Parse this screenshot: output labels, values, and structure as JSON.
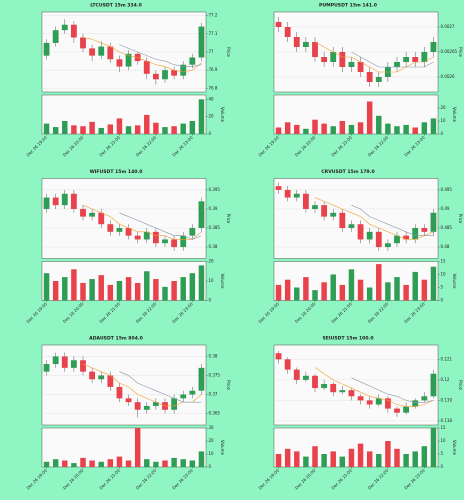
{
  "colors": {
    "up": "#2f9e55",
    "down": "#e8424c",
    "ma1": "#f0a030",
    "ma2": "#8a95a8"
  },
  "chart_data": [
    {
      "type": "candlestick",
      "title": "LTCUSDT 15m 334.0",
      "y_label": "Price",
      "volume_label": "Volume",
      "categories": [
        "Dec 26 19:00",
        null,
        null,
        null,
        "Dec 26 20:00",
        null,
        null,
        null,
        "Dec 26 21:00",
        null,
        null,
        null,
        "Dec 26 22:00",
        null,
        null,
        null,
        "Dec 26 23:00",
        null
      ],
      "ohlc": [
        [
          76.98,
          77.07,
          76.96,
          77.05
        ],
        [
          77.05,
          77.14,
          77.03,
          77.12
        ],
        [
          77.12,
          77.18,
          77.1,
          77.15
        ],
        [
          77.15,
          77.17,
          77.05,
          77.08
        ],
        [
          77.08,
          77.1,
          77.0,
          77.02
        ],
        [
          77.02,
          77.04,
          76.95,
          76.98
        ],
        [
          76.98,
          77.06,
          76.96,
          77.03
        ],
        [
          77.03,
          77.05,
          76.94,
          76.96
        ],
        [
          76.96,
          76.98,
          76.89,
          76.92
        ],
        [
          76.92,
          77.01,
          76.9,
          76.99
        ],
        [
          76.99,
          77.0,
          76.93,
          76.95
        ],
        [
          76.95,
          76.97,
          76.85,
          76.88
        ],
        [
          76.88,
          76.9,
          76.82,
          76.85
        ],
        [
          76.85,
          76.92,
          76.83,
          76.9
        ],
        [
          76.9,
          76.92,
          76.85,
          76.87
        ],
        [
          76.87,
          76.95,
          76.85,
          76.93
        ],
        [
          76.93,
          76.99,
          76.91,
          76.97
        ],
        [
          76.97,
          77.16,
          76.95,
          77.14
        ]
      ],
      "ma1": [
        null,
        null,
        null,
        null,
        77.08,
        77.07,
        77.05,
        77.03,
        77.0,
        76.98,
        76.97,
        76.95,
        76.93,
        76.92,
        76.9,
        76.89,
        76.9,
        76.94
      ],
      "ma2": [
        null,
        null,
        null,
        null,
        null,
        null,
        null,
        null,
        77.04,
        77.02,
        77.0,
        76.98,
        76.96,
        76.95,
        76.93,
        76.92,
        76.92,
        76.93
      ],
      "volume": [
        12,
        8,
        15,
        10,
        9,
        14,
        7,
        11,
        18,
        9,
        10,
        22,
        13,
        8,
        9,
        12,
        15,
        40
      ],
      "ylim": [
        76.78,
        77.22
      ],
      "yticks": [
        76.8,
        76.9,
        77,
        77.1,
        77.2
      ],
      "vlim": [
        0,
        45
      ],
      "vticks": [
        0,
        20,
        40
      ]
    },
    {
      "type": "candlestick",
      "title": "PUMPUSDT 15m 141.0",
      "y_label": "Price",
      "volume_label": "Volume",
      "categories": [
        "Dec 26 19:00",
        null,
        null,
        null,
        "Dec 26 20:00",
        null,
        null,
        null,
        "Dec 26 21:00",
        null,
        null,
        null,
        "Dec 26 22:00",
        null,
        null,
        null,
        "Dec 26 23:00",
        null
      ],
      "ohlc": [
        [
          0.00271,
          0.00272,
          0.00269,
          0.0027
        ],
        [
          0.0027,
          0.00271,
          0.00267,
          0.00268
        ],
        [
          0.00268,
          0.00269,
          0.00265,
          0.00266
        ],
        [
          0.00266,
          0.00268,
          0.00265,
          0.00267
        ],
        [
          0.00267,
          0.00268,
          0.00263,
          0.00264
        ],
        [
          0.00264,
          0.00265,
          0.00262,
          0.00263
        ],
        [
          0.00263,
          0.00266,
          0.00262,
          0.00265
        ],
        [
          0.00265,
          0.00266,
          0.00261,
          0.00262
        ],
        [
          0.00262,
          0.00264,
          0.00261,
          0.00263
        ],
        [
          0.00263,
          0.00264,
          0.0026,
          0.00261
        ],
        [
          0.00261,
          0.00262,
          0.00258,
          0.00259
        ],
        [
          0.00259,
          0.00261,
          0.00258,
          0.0026
        ],
        [
          0.0026,
          0.00263,
          0.00259,
          0.00262
        ],
        [
          0.00262,
          0.00264,
          0.00261,
          0.00263
        ],
        [
          0.00263,
          0.00265,
          0.00262,
          0.00264
        ],
        [
          0.00264,
          0.00265,
          0.00262,
          0.00263
        ],
        [
          0.00263,
          0.00266,
          0.00262,
          0.00265
        ],
        [
          0.00265,
          0.00268,
          0.00264,
          0.00267
        ]
      ],
      "ma1": [
        null,
        null,
        null,
        null,
        0.00267,
        0.00266,
        0.00265,
        0.00264,
        0.00264,
        0.00263,
        0.00262,
        0.00261,
        0.00261,
        0.00261,
        0.00262,
        0.00263,
        0.00263,
        0.00264
      ],
      "ma2": [
        null,
        null,
        null,
        null,
        null,
        null,
        null,
        null,
        0.00265,
        0.00264,
        0.00263,
        0.00262,
        0.00262,
        0.00262,
        0.00262,
        0.00262,
        0.00262,
        0.00263
      ],
      "volume": [
        5,
        9,
        7,
        4,
        11,
        8,
        6,
        10,
        7,
        9,
        25,
        14,
        8,
        6,
        7,
        5,
        9,
        12
      ],
      "ylim": [
        0.00257,
        0.00273
      ],
      "yticks": [
        0.0026,
        0.00265,
        0.0027
      ],
      "vlim": [
        0,
        30
      ],
      "vticks": [
        0,
        10,
        20
      ]
    },
    {
      "type": "candlestick",
      "title": "WIFUSDT 15m 140.0",
      "y_label": "Price",
      "volume_label": "Volume",
      "categories": [
        "Dec 26 19:00",
        null,
        null,
        null,
        "Dec 26 20:00",
        null,
        null,
        null,
        "Dec 26 21:00",
        null,
        null,
        null,
        "Dec 26 22:00",
        null,
        null,
        null,
        "Dec 26 23:00",
        null
      ],
      "ohlc": [
        [
          0.39,
          0.394,
          0.389,
          0.393
        ],
        [
          0.393,
          0.394,
          0.39,
          0.391
        ],
        [
          0.391,
          0.395,
          0.39,
          0.394
        ],
        [
          0.394,
          0.395,
          0.389,
          0.39
        ],
        [
          0.39,
          0.391,
          0.387,
          0.388
        ],
        [
          0.388,
          0.39,
          0.387,
          0.389
        ],
        [
          0.389,
          0.39,
          0.385,
          0.386
        ],
        [
          0.386,
          0.387,
          0.383,
          0.384
        ],
        [
          0.384,
          0.386,
          0.383,
          0.385
        ],
        [
          0.385,
          0.386,
          0.382,
          0.383
        ],
        [
          0.383,
          0.384,
          0.381,
          0.382
        ],
        [
          0.382,
          0.385,
          0.381,
          0.384
        ],
        [
          0.384,
          0.385,
          0.38,
          0.381
        ],
        [
          0.381,
          0.383,
          0.38,
          0.382
        ],
        [
          0.382,
          0.383,
          0.379,
          0.38
        ],
        [
          0.38,
          0.384,
          0.379,
          0.383
        ],
        [
          0.383,
          0.386,
          0.382,
          0.385
        ],
        [
          0.385,
          0.393,
          0.384,
          0.392
        ]
      ],
      "ma1": [
        null,
        null,
        null,
        null,
        0.391,
        0.39,
        0.389,
        0.388,
        0.386,
        0.385,
        0.384,
        0.384,
        0.383,
        0.383,
        0.382,
        0.382,
        0.382,
        0.384
      ],
      "ma2": [
        null,
        null,
        null,
        null,
        null,
        null,
        null,
        null,
        0.389,
        0.388,
        0.387,
        0.386,
        0.385,
        0.384,
        0.383,
        0.383,
        0.382,
        0.383
      ],
      "volume": [
        14,
        10,
        12,
        16,
        9,
        11,
        13,
        8,
        10,
        12,
        9,
        15,
        11,
        7,
        10,
        12,
        14,
        18
      ],
      "ylim": [
        0.377,
        0.398
      ],
      "yticks": [
        0.38,
        0.385,
        0.39,
        0.395
      ],
      "vlim": [
        0,
        20
      ],
      "vticks": [
        0,
        10,
        20
      ]
    },
    {
      "type": "candlestick",
      "title": "CRVUSDT 15m 179.0",
      "y_label": "Price",
      "volume_label": "Volume",
      "categories": [
        "Dec 26 19:00",
        null,
        null,
        null,
        "Dec 26 20:00",
        null,
        null,
        null,
        "Dec 26 21:00",
        null,
        null,
        null,
        "Dec 26 22:00",
        null,
        null,
        null,
        "Dec 26 23:00",
        null
      ],
      "ohlc": [
        [
          0.496,
          0.497,
          0.494,
          0.495
        ],
        [
          0.495,
          0.496,
          0.492,
          0.493
        ],
        [
          0.493,
          0.495,
          0.492,
          0.494
        ],
        [
          0.494,
          0.495,
          0.489,
          0.49
        ],
        [
          0.49,
          0.492,
          0.489,
          0.491
        ],
        [
          0.491,
          0.492,
          0.487,
          0.488
        ],
        [
          0.488,
          0.49,
          0.487,
          0.489
        ],
        [
          0.489,
          0.49,
          0.484,
          0.485
        ],
        [
          0.485,
          0.487,
          0.484,
          0.486
        ],
        [
          0.486,
          0.487,
          0.481,
          0.482
        ],
        [
          0.482,
          0.485,
          0.481,
          0.484
        ],
        [
          0.484,
          0.485,
          0.479,
          0.48
        ],
        [
          0.48,
          0.482,
          0.479,
          0.481
        ],
        [
          0.481,
          0.484,
          0.48,
          0.483
        ],
        [
          0.483,
          0.484,
          0.481,
          0.482
        ],
        [
          0.482,
          0.486,
          0.481,
          0.485
        ],
        [
          0.485,
          0.486,
          0.483,
          0.484
        ],
        [
          0.484,
          0.49,
          0.483,
          0.489
        ]
      ],
      "ma1": [
        null,
        null,
        null,
        null,
        0.493,
        0.492,
        0.491,
        0.49,
        0.489,
        0.488,
        0.486,
        0.485,
        0.484,
        0.483,
        0.482,
        0.482,
        0.483,
        0.484
      ],
      "ma2": [
        null,
        null,
        null,
        null,
        null,
        null,
        null,
        null,
        0.491,
        0.49,
        0.488,
        0.487,
        0.486,
        0.485,
        0.484,
        0.483,
        0.483,
        0.483
      ],
      "volume": [
        6,
        8,
        5,
        9,
        4,
        7,
        10,
        6,
        12,
        8,
        5,
        14,
        7,
        9,
        6,
        11,
        8,
        13
      ],
      "ylim": [
        0.477,
        0.498
      ],
      "yticks": [
        0.48,
        0.485,
        0.49,
        0.495
      ],
      "vlim": [
        0,
        15
      ],
      "vticks": [
        0,
        5,
        10,
        15
      ]
    },
    {
      "type": "candlestick",
      "title": "ADAUSDT 15m 804.0",
      "y_label": "Price",
      "volume_label": "Volume",
      "categories": [
        "Dec 26 19:00",
        null,
        null,
        null,
        "Dec 26 20:00",
        null,
        null,
        null,
        "Dec 26 21:00",
        null,
        null,
        null,
        "Dec 26 22:00",
        null,
        null,
        null,
        "Dec 26 23:00",
        null
      ],
      "ohlc": [
        [
          0.376,
          0.379,
          0.375,
          0.378
        ],
        [
          0.378,
          0.381,
          0.377,
          0.38
        ],
        [
          0.38,
          0.381,
          0.376,
          0.377
        ],
        [
          0.377,
          0.38,
          0.376,
          0.379
        ],
        [
          0.379,
          0.38,
          0.375,
          0.376
        ],
        [
          0.376,
          0.377,
          0.373,
          0.374
        ],
        [
          0.374,
          0.376,
          0.373,
          0.375
        ],
        [
          0.375,
          0.376,
          0.371,
          0.372
        ],
        [
          0.372,
          0.373,
          0.368,
          0.369
        ],
        [
          0.369,
          0.37,
          0.367,
          0.368
        ],
        [
          0.368,
          0.369,
          0.364,
          0.366
        ],
        [
          0.366,
          0.368,
          0.365,
          0.367
        ],
        [
          0.367,
          0.369,
          0.366,
          0.368
        ],
        [
          0.368,
          0.369,
          0.365,
          0.366
        ],
        [
          0.366,
          0.37,
          0.365,
          0.369
        ],
        [
          0.369,
          0.371,
          0.368,
          0.37
        ],
        [
          0.37,
          0.372,
          0.369,
          0.371
        ],
        [
          0.371,
          0.378,
          0.37,
          0.377
        ]
      ],
      "ma1": [
        null,
        null,
        null,
        null,
        0.378,
        0.377,
        0.376,
        0.375,
        0.373,
        0.372,
        0.37,
        0.369,
        0.368,
        0.367,
        0.367,
        0.368,
        0.368,
        0.37
      ],
      "ma2": [
        null,
        null,
        null,
        null,
        null,
        null,
        null,
        null,
        0.376,
        0.375,
        0.373,
        0.372,
        0.371,
        0.37,
        0.369,
        0.368,
        0.368,
        0.368
      ],
      "volume": [
        4,
        6,
        5,
        3,
        7,
        5,
        4,
        6,
        8,
        5,
        30,
        6,
        4,
        5,
        7,
        6,
        5,
        12
      ],
      "ylim": [
        0.362,
        0.383
      ],
      "yticks": [
        0.365,
        0.37,
        0.375,
        0.38
      ],
      "vlim": [
        0,
        30
      ],
      "vticks": [
        0,
        10,
        20,
        30
      ]
    },
    {
      "type": "candlestick",
      "title": "SEIUSDT 15m 100.0",
      "y_label": "Price",
      "volume_label": "Volume",
      "categories": [
        "Dec 26 19:00",
        null,
        null,
        null,
        "Dec 26 20:00",
        null,
        null,
        null,
        "Dec 26 21:00",
        null,
        null,
        null,
        "Dec 26 22:00",
        null,
        null,
        null,
        "Dec 26 23:00",
        null
      ],
      "ohlc": [
        [
          0.1213,
          0.1214,
          0.1208,
          0.121
        ],
        [
          0.121,
          0.1211,
          0.1203,
          0.1205
        ],
        [
          0.1205,
          0.1206,
          0.1198,
          0.12
        ],
        [
          0.12,
          0.1204,
          0.1199,
          0.1202
        ],
        [
          0.1202,
          0.1203,
          0.1194,
          0.1196
        ],
        [
          0.1196,
          0.12,
          0.1195,
          0.1198
        ],
        [
          0.1198,
          0.1199,
          0.1192,
          0.1194
        ],
        [
          0.1194,
          0.1197,
          0.1193,
          0.1195
        ],
        [
          0.1195,
          0.1196,
          0.119,
          0.1192
        ],
        [
          0.1192,
          0.1193,
          0.1188,
          0.119
        ],
        [
          0.119,
          0.1192,
          0.1186,
          0.1188
        ],
        [
          0.1188,
          0.1193,
          0.1187,
          0.1191
        ],
        [
          0.1191,
          0.1192,
          0.1184,
          0.1186
        ],
        [
          0.1186,
          0.1187,
          0.1182,
          0.1184
        ],
        [
          0.1184,
          0.1189,
          0.1183,
          0.1187
        ],
        [
          0.1187,
          0.1191,
          0.1186,
          0.119
        ],
        [
          0.119,
          0.1194,
          0.1189,
          0.1192
        ],
        [
          0.1192,
          0.1205,
          0.1191,
          0.1203
        ]
      ],
      "ma1": [
        null,
        null,
        null,
        null,
        0.1206,
        0.1203,
        0.12,
        0.1198,
        0.1196,
        0.1194,
        0.1192,
        0.1191,
        0.119,
        0.1188,
        0.1187,
        0.1187,
        0.1188,
        0.119
      ],
      "ma2": [
        null,
        null,
        null,
        null,
        null,
        null,
        null,
        null,
        0.1201,
        0.1199,
        0.1197,
        0.1195,
        0.1193,
        0.1192,
        0.119,
        0.1189,
        0.1189,
        0.119
      ],
      "volume": [
        5,
        7,
        6,
        4,
        8,
        5,
        6,
        4,
        7,
        9,
        6,
        5,
        10,
        7,
        5,
        6,
        8,
        15
      ],
      "ylim": [
        0.1178,
        0.1217
      ],
      "yticks": [
        0.118,
        0.119,
        0.12,
        0.121
      ],
      "vlim": [
        0,
        15
      ],
      "vticks": [
        0,
        5,
        10,
        15
      ]
    }
  ]
}
